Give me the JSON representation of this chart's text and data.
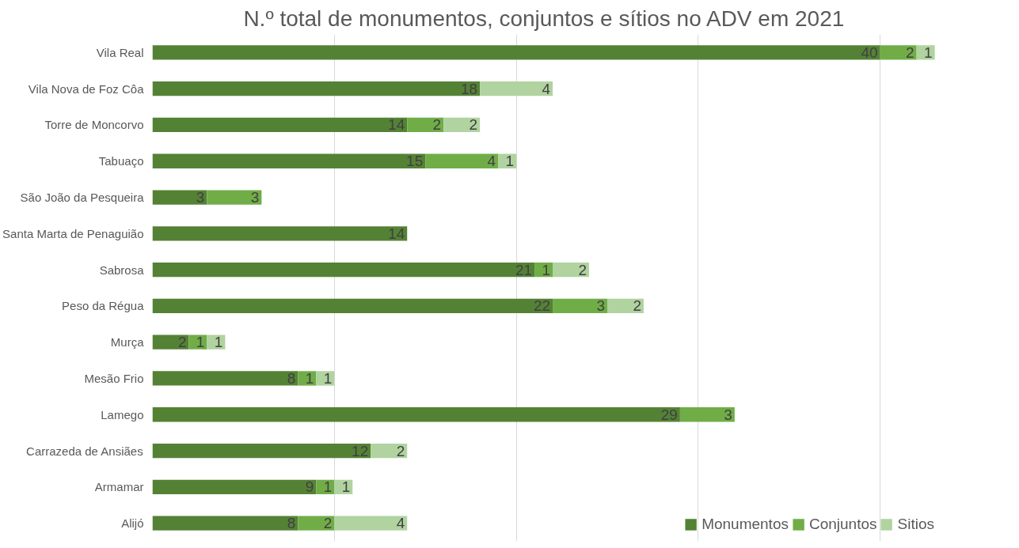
{
  "chart_data": {
    "type": "bar",
    "orientation": "horizontal",
    "stacked": true,
    "title": "N.º total de monumentos, conjuntos e sítios  no ADV em 2021",
    "categories": [
      "Vila Real",
      "Vila Nova de Foz Côa",
      "Torre de Moncorvo",
      "Tabuaço",
      "São João da Pesqueira",
      "Santa Marta de Penaguião",
      "Sabrosa",
      "Peso da Régua",
      "Murça",
      "Mesão Frio",
      "Lamego",
      "Carrazeda de Ansiães",
      "Armamar",
      "Alijó"
    ],
    "series": [
      {
        "name": "Monumentos",
        "color": "#548235",
        "values": [
          40,
          18,
          14,
          15,
          3,
          14,
          21,
          22,
          2,
          8,
          29,
          12,
          9,
          8
        ]
      },
      {
        "name": "Conjuntos",
        "color": "#70ad47",
        "values": [
          2,
          null,
          2,
          4,
          3,
          null,
          1,
          3,
          1,
          1,
          3,
          null,
          1,
          2
        ]
      },
      {
        "name": "Sitios",
        "color": "#b0d3a0",
        "values": [
          1,
          4,
          2,
          1,
          null,
          null,
          2,
          2,
          1,
          1,
          null,
          2,
          1,
          4
        ]
      }
    ],
    "tick_labels": "y",
    "grid": "x",
    "legend": "bottom right",
    "data_labels": true
  }
}
